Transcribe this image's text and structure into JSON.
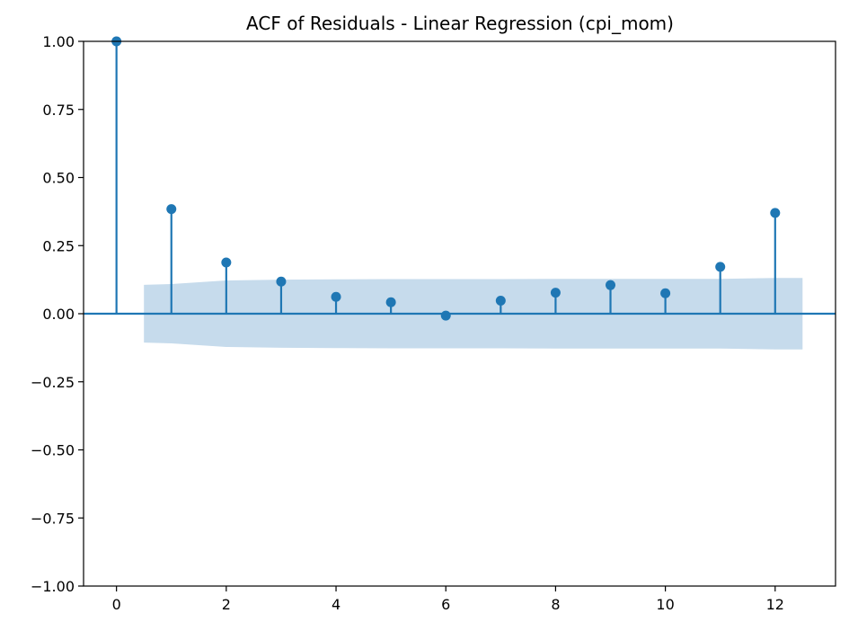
{
  "chart_data": {
    "type": "stem",
    "title": "ACF of Residuals - Linear Regression (cpi_mom)",
    "xlabel": "",
    "ylabel": "",
    "xlim": [
      -0.6,
      13.1
    ],
    "ylim": [
      -1.0,
      1.0
    ],
    "x_ticks": [
      0,
      2,
      4,
      6,
      8,
      10,
      12
    ],
    "y_ticks": [
      -1.0,
      -0.75,
      -0.5,
      -0.25,
      0.0,
      0.25,
      0.5,
      0.75,
      1.0
    ],
    "x_tick_labels": [
      "0",
      "2",
      "4",
      "6",
      "8",
      "10",
      "12"
    ],
    "y_tick_labels": [
      "−1.00",
      "−0.75",
      "−0.50",
      "−0.25",
      "0.00",
      "0.25",
      "0.50",
      "0.75",
      "1.00"
    ],
    "lags": [
      0,
      1,
      2,
      3,
      4,
      5,
      6,
      7,
      8,
      9,
      10,
      11,
      12
    ],
    "acf": [
      1.0,
      0.384,
      0.188,
      0.118,
      0.062,
      0.042,
      -0.007,
      0.048,
      0.077,
      0.105,
      0.075,
      0.172,
      0.37
    ],
    "confidence_band": {
      "x": [
        0.5,
        1,
        2,
        3,
        4,
        5,
        6,
        7,
        8,
        9,
        10,
        11,
        12,
        12.5
      ],
      "upper": [
        0.106,
        0.109,
        0.122,
        0.125,
        0.126,
        0.127,
        0.127,
        0.127,
        0.128,
        0.128,
        0.128,
        0.128,
        0.131,
        0.131
      ],
      "lower": [
        -0.106,
        -0.109,
        -0.122,
        -0.125,
        -0.126,
        -0.127,
        -0.127,
        -0.127,
        -0.128,
        -0.128,
        -0.128,
        -0.128,
        -0.131,
        -0.131
      ]
    },
    "colors": {
      "stem": "#1f77b4",
      "band": "#c6dbec",
      "axis": "#000000"
    },
    "grid": false,
    "legend": "none"
  }
}
